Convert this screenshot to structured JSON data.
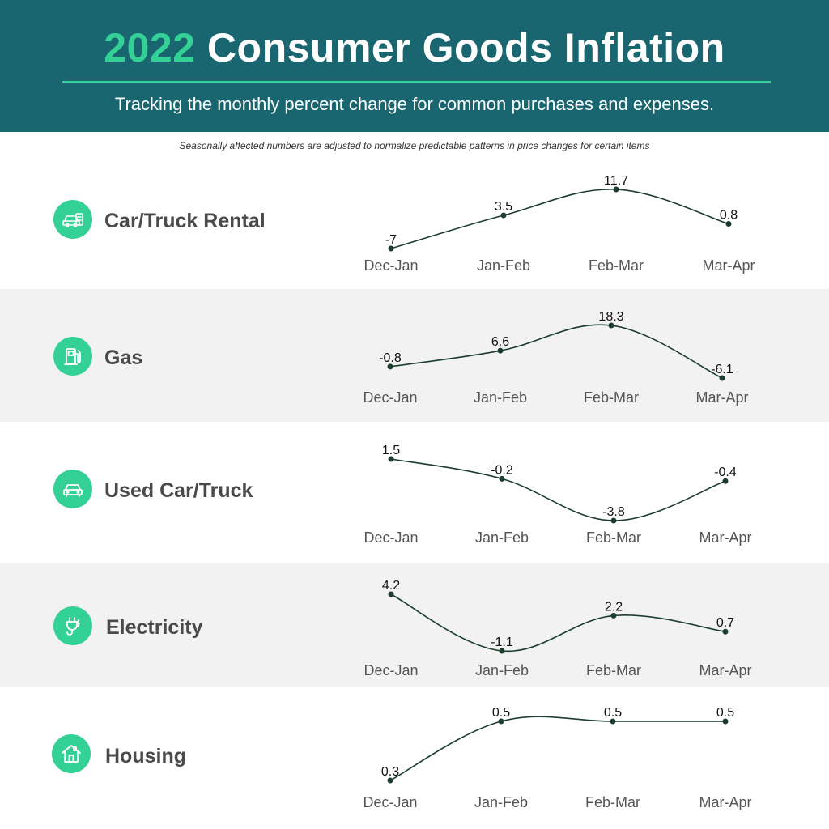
{
  "header": {
    "title_year": "2022",
    "title_rest": "Consumer Goods Inflation",
    "subtitle": "Tracking the monthly percent change for common purchases and expenses.",
    "note": "Seasonally affected numbers are adjusted to normalize predictable patterns in price changes for certain items"
  },
  "colors": {
    "header_bg": "#1a6670",
    "accent": "#33d196",
    "line": "#1c3d2e",
    "shade_row": "#f2f2f2"
  },
  "chart_data": [
    {
      "type": "line",
      "title": "Car/Truck Rental",
      "icon": "car-rental-icon",
      "categories": [
        "Dec-Jan",
        "Jan-Feb",
        "Feb-Mar",
        "Mar-Apr"
      ],
      "values": [
        -7,
        3.5,
        11.7,
        0.8
      ],
      "labels": [
        "-7",
        "3.5",
        "11.7",
        "0.8"
      ]
    },
    {
      "type": "line",
      "title": "Gas",
      "icon": "gas-pump-icon",
      "categories": [
        "Dec-Jan",
        "Jan-Feb",
        "Feb-Mar",
        "Mar-Apr"
      ],
      "values": [
        -0.8,
        6.6,
        18.3,
        -6.1
      ],
      "labels": [
        "-0.8",
        "6.6",
        "18.3",
        "-6.1"
      ]
    },
    {
      "type": "line",
      "title": "Used Car/Truck",
      "icon": "car-icon",
      "categories": [
        "Dec-Jan",
        "Jan-Feb",
        "Feb-Mar",
        "Mar-Apr"
      ],
      "values": [
        1.5,
        -0.2,
        -3.8,
        -0.4
      ],
      "labels": [
        "1.5",
        "-0.2",
        "-3.8",
        "-0.4"
      ]
    },
    {
      "type": "line",
      "title": "Electricity",
      "icon": "plug-icon",
      "categories": [
        "Dec-Jan",
        "Jan-Feb",
        "Feb-Mar",
        "Mar-Apr"
      ],
      "values": [
        4.2,
        -1.1,
        2.2,
        0.7
      ],
      "labels": [
        "4.2",
        "-1.1",
        "2.2",
        "0.7"
      ]
    },
    {
      "type": "line",
      "title": "Housing",
      "icon": "house-icon",
      "categories": [
        "Dec-Jan",
        "Jan-Feb",
        "Feb-Mar",
        "Mar-Apr"
      ],
      "values": [
        0.3,
        0.5,
        0.5,
        0.5
      ],
      "labels": [
        "0.3",
        "0.5",
        "0.5",
        "0.5"
      ]
    }
  ]
}
